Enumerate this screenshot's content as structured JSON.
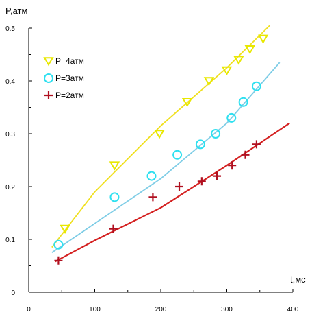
{
  "chart_data": {
    "type": "scatter",
    "xlabel": "t,мс",
    "ylabel": "P,атм",
    "xlim": [
      0,
      400
    ],
    "ylim": [
      0,
      0.5
    ],
    "x_ticks": [
      "0",
      "100",
      "200",
      "300",
      "400"
    ],
    "y_ticks": [
      "0",
      "0.1",
      "0.2",
      "0.3",
      "0.4",
      "0.5"
    ],
    "legend_position": "top-left",
    "grid": false,
    "series": [
      {
        "name": "P=4атм",
        "marker": "triangle-down",
        "color": "#e8e800",
        "line_color": "#f0e020",
        "points": [
          [
            55,
            0.12
          ],
          [
            130,
            0.24
          ],
          [
            198,
            0.3
          ],
          [
            240,
            0.36
          ],
          [
            273,
            0.4
          ],
          [
            300,
            0.42
          ],
          [
            318,
            0.44
          ],
          [
            335,
            0.46
          ],
          [
            355,
            0.48
          ]
        ],
        "fit": [
          [
            35,
            0.085
          ],
          [
            100,
            0.19
          ],
          [
            200,
            0.315
          ],
          [
            300,
            0.425
          ],
          [
            365,
            0.505
          ]
        ]
      },
      {
        "name": "P=3атм",
        "marker": "circle",
        "color": "#2ee0f0",
        "line_color": "#7fcde6",
        "points": [
          [
            45,
            0.09
          ],
          [
            130,
            0.18
          ],
          [
            186,
            0.22
          ],
          [
            225,
            0.26
          ],
          [
            260,
            0.28
          ],
          [
            283,
            0.3
          ],
          [
            307,
            0.33
          ],
          [
            325,
            0.36
          ],
          [
            345,
            0.39
          ]
        ],
        "fit": [
          [
            35,
            0.075
          ],
          [
            100,
            0.13
          ],
          [
            200,
            0.215
          ],
          [
            300,
            0.32
          ],
          [
            380,
            0.435
          ]
        ]
      },
      {
        "name": "P=2атм",
        "marker": "plus",
        "color": "#b01020",
        "line_color": "#d42020",
        "points": [
          [
            45,
            0.06
          ],
          [
            128,
            0.12
          ],
          [
            188,
            0.18
          ],
          [
            228,
            0.2
          ],
          [
            262,
            0.21
          ],
          [
            285,
            0.22
          ],
          [
            308,
            0.24
          ],
          [
            328,
            0.26
          ],
          [
            345,
            0.28
          ]
        ],
        "fit": [
          [
            40,
            0.058
          ],
          [
            100,
            0.098
          ],
          [
            200,
            0.16
          ],
          [
            300,
            0.24
          ],
          [
            395,
            0.32
          ]
        ]
      }
    ]
  }
}
